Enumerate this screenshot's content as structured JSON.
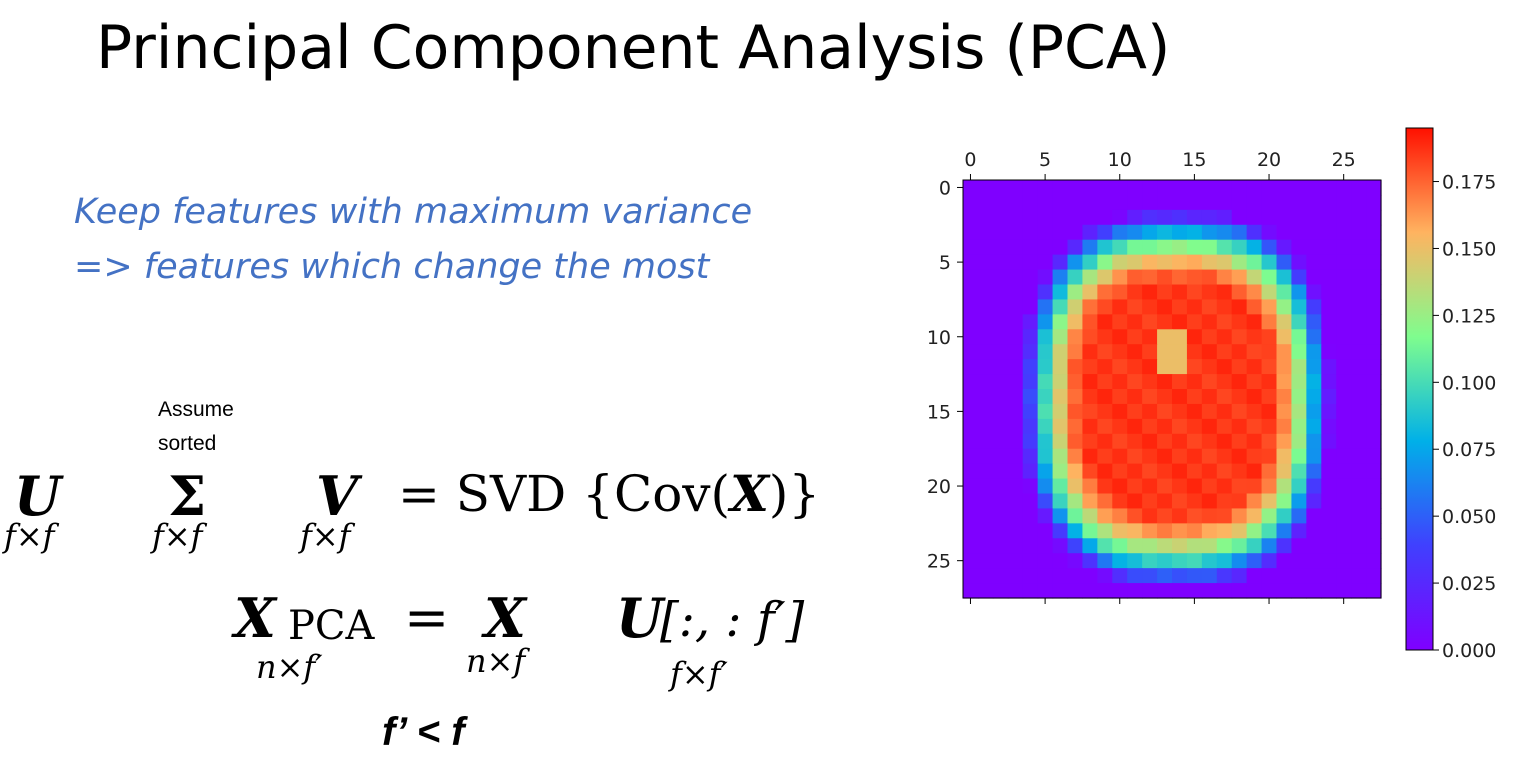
{
  "slide": {
    "title": "Principal Component Analysis (PCA)",
    "note_line1": "Keep features with maximum variance",
    "note_line2": "=> features which change the most",
    "assume_line1": "Assume",
    "assume_line2": "sorted",
    "constraint": "f’ < f"
  },
  "equation1": {
    "u": "U",
    "u_dim": "f×f",
    "sigma": "Σ",
    "sigma_dim": "f×f",
    "v": "V",
    "v_dim": "f×f",
    "rhs_prefix": "= SVD {Cov(",
    "x": "X",
    "rhs_suffix": ")}"
  },
  "equation2": {
    "x": "X",
    "pca": "PCA",
    "x_pca_dim": "n×f′",
    "equals": "=",
    "x2": "X",
    "x2_dim": "n×f",
    "u": "U",
    "u_slice": "[:, : f′]",
    "u_dim": "f×f′"
  },
  "colors": {
    "note": "#4472c4",
    "colormap": [
      "#7f00ff",
      "#4040fe",
      "#00b0e8",
      "#7ffd8e",
      "#ffb360",
      "#ff1000"
    ]
  },
  "chart_data": {
    "type": "heatmap",
    "title": "",
    "colormap": "rainbow",
    "x_ticks": [
      0,
      5,
      10,
      15,
      20,
      25
    ],
    "y_ticks": [
      0,
      5,
      10,
      15,
      20,
      25
    ],
    "x_range": [
      0,
      27
    ],
    "y_range": [
      0,
      27
    ],
    "grid_size": [
      28,
      28
    ],
    "x_axis_position": "top",
    "colorbar_ticks": [
      "0.000",
      "0.025",
      "0.050",
      "0.075",
      "0.100",
      "0.125",
      "0.150",
      "0.175"
    ],
    "colorbar_range": [
      0,
      0.195
    ],
    "value_model": {
      "description": "blob",
      "center_row": 14.2,
      "center_col": 13.8,
      "radius_row": 12.1,
      "radius_col": 9.9,
      "shape_exponent": 2.6,
      "falloff": 2.3,
      "peak": 0.19,
      "hot_spot": {
        "row": 11,
        "col": 13.5,
        "value": 0.15
      }
    }
  }
}
